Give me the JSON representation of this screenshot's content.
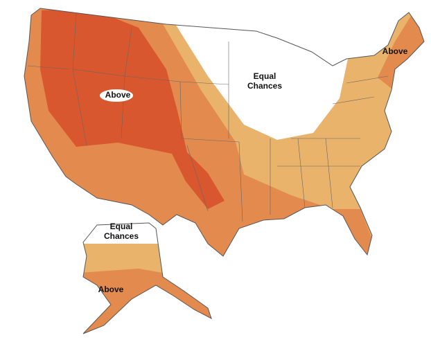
{
  "labels": [
    {
      "lines": [
        "Above"
      ]
    },
    {
      "lines": [
        "Equal",
        "Chances"
      ]
    },
    {
      "lines": [
        "Above"
      ]
    },
    {
      "lines": [
        "Equal",
        "Chances"
      ]
    },
    {
      "lines": [
        "Above"
      ]
    }
  ]
}
